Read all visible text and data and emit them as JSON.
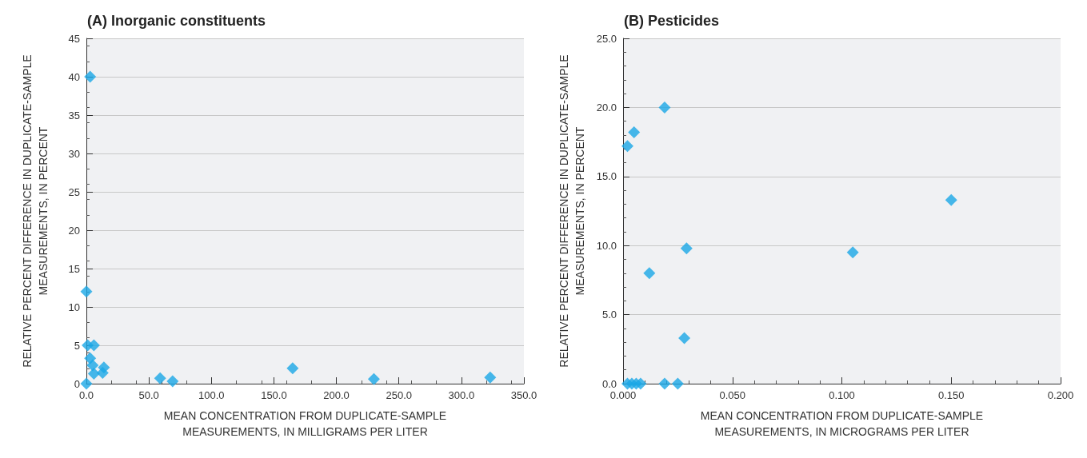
{
  "chart_data": [
    {
      "type": "scatter",
      "title": "(A) Inorganic constituents",
      "xlabel": "MEAN CONCENTRATION FROM DUPLICATE-SAMPLE\nMEASUREMENTS, IN MILLIGRAMS PER LITER",
      "ylabel": "RELATIVE PERCENT DIFFERENCE IN DUPLICATE-SAMPLE\nMEASUREMENTS, IN PERCENT",
      "x": [
        0,
        3,
        0,
        1,
        6,
        3,
        5,
        14,
        13,
        6,
        59,
        69,
        165,
        230,
        323
      ],
      "series": [
        {
          "color": "#1aa7e6",
          "values": [
            0,
            40,
            12,
            5,
            5,
            3.3,
            2.4,
            2.1,
            1.4,
            1.3,
            0.7,
            0.3,
            2.0,
            0.6,
            0.8
          ]
        }
      ],
      "xlim": [
        0,
        350
      ],
      "xticks": [
        {
          "value": 0,
          "label": "0.0"
        },
        {
          "value": 50,
          "label": "50.0"
        },
        {
          "value": 100,
          "label": "100.0"
        },
        {
          "value": 150,
          "label": "150.0"
        },
        {
          "value": 200,
          "label": "200.0"
        },
        {
          "value": 250,
          "label": "250.0"
        },
        {
          "value": 300,
          "label": "300.0"
        },
        {
          "value": 350,
          "label": "350.0"
        }
      ],
      "ylim": [
        0,
        45
      ],
      "yticks": [
        0,
        5,
        10,
        15,
        20,
        25,
        30,
        35,
        40,
        45
      ],
      "grid": "y",
      "marker": "diamond"
    },
    {
      "type": "scatter",
      "title": "(B) Pesticides",
      "xlabel": "MEAN CONCENTRATION FROM DUPLICATE-SAMPLE\nMEASUREMENTS, IN MICROGRAMS PER LITER",
      "ylabel": "RELATIVE PERCENT DIFFERENCE IN DUPLICATE-SAMPLE\nMEASUREMENTS, IN PERCENT",
      "x": [
        0.002,
        0.005,
        0.019,
        0.012,
        0.029,
        0.028,
        0.105,
        0.15,
        0.002,
        0.004,
        0.006,
        0.008,
        0.019,
        0.025
      ],
      "series": [
        {
          "color": "#1aa7e6",
          "values": [
            17.2,
            18.2,
            20.0,
            8.0,
            9.8,
            3.3,
            9.5,
            13.3,
            0,
            0,
            0,
            0,
            0,
            0
          ]
        }
      ],
      "xlim": [
        0,
        0.2
      ],
      "xticks": [
        {
          "value": 0,
          "label": "0.000"
        },
        {
          "value": 0.05,
          "label": "0.050"
        },
        {
          "value": 0.1,
          "label": "0.100"
        },
        {
          "value": 0.15,
          "label": "0.150"
        },
        {
          "value": 0.2,
          "label": "0.200"
        }
      ],
      "ylim": [
        0,
        25
      ],
      "yticks": [
        {
          "value": 0,
          "label": "0.0"
        },
        {
          "value": 5,
          "label": "5.0"
        },
        {
          "value": 10,
          "label": "10.0"
        },
        {
          "value": 15,
          "label": "15.0"
        },
        {
          "value": 20,
          "label": "20.0"
        },
        {
          "value": 25,
          "label": "25.0"
        }
      ],
      "grid": "y",
      "marker": "diamond"
    }
  ]
}
